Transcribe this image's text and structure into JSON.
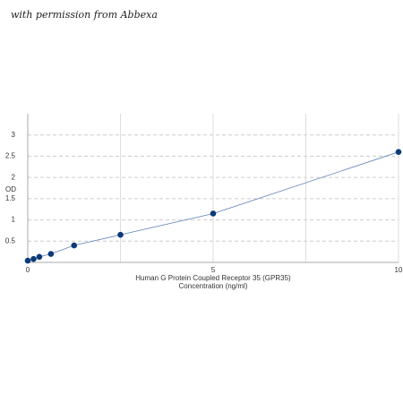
{
  "watermark": "with permission from Abbexa",
  "chart_data": {
    "type": "line",
    "xlabel": [
      "Human G Protein Coupled Receptor 35 (GPR35)",
      "Concentration (ng/ml)"
    ],
    "ylabel": "OD",
    "x": [
      0,
      0.156,
      0.312,
      0.625,
      1.25,
      2.5,
      5,
      10
    ],
    "series": [
      {
        "color": "#0d3a78",
        "line_color": "#5f83b8",
        "values": [
          0.04,
          0.08,
          0.13,
          0.2,
          0.4,
          0.65,
          1.15,
          2.6
        ]
      }
    ],
    "xlim": [
      0,
      10
    ],
    "xticks": [
      0,
      5,
      10
    ],
    "minor_xticks": [
      2.5,
      7.5
    ],
    "ylim": [
      0,
      3.5
    ],
    "yticks": [
      0.5,
      1,
      1.5,
      2,
      2.5,
      3
    ],
    "grid": true
  }
}
